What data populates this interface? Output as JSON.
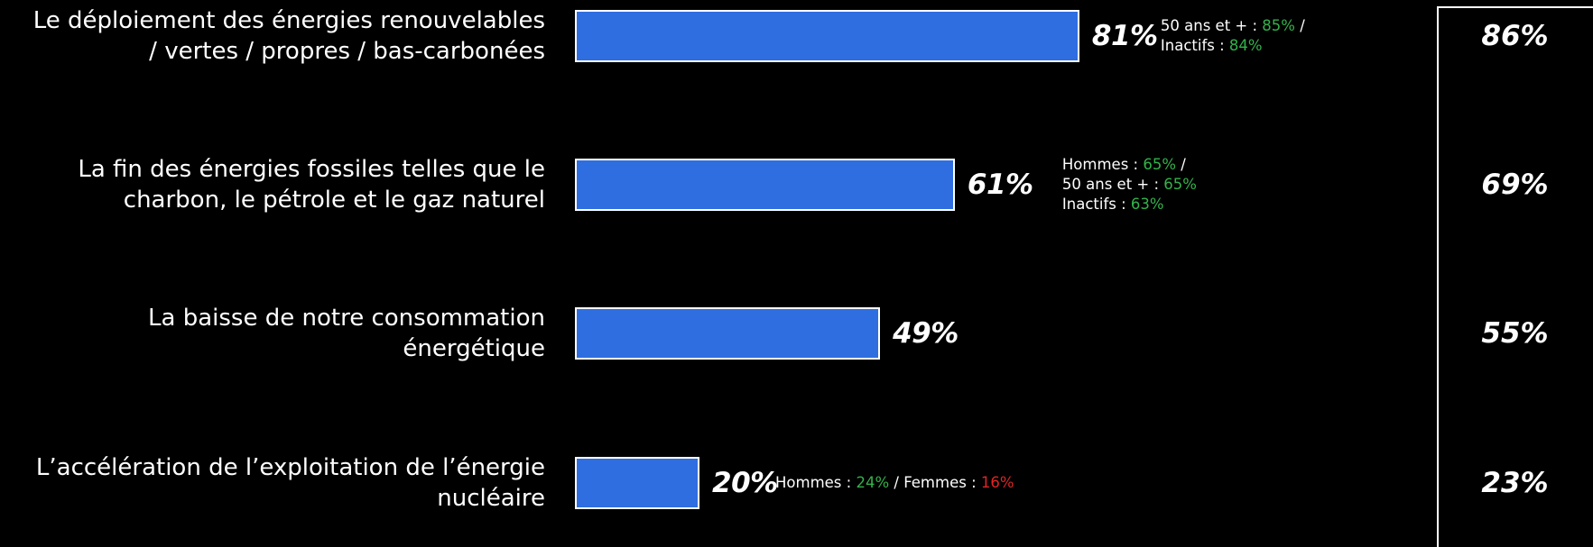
{
  "chart_data": {
    "type": "bar",
    "orientation": "horizontal",
    "categories": [
      "Le déploiement des énergies renouvelables / vertes / propres / bas-carbonées",
      "La fin des énergies fossiles telles que le charbon, le pétrole et le gaz naturel",
      "La baisse de notre consommation énergétique",
      "L’accélération de l’exploitation de l’énergie nucléaire"
    ],
    "category_lines": [
      [
        "Le déploiement des énergies renouvelables",
        "/ vertes / propres / bas-carbonées"
      ],
      [
        "La fin des énergies fossiles telles que le",
        "charbon, le pétrole et le gaz naturel"
      ],
      [
        "La baisse de notre consommation",
        "énergétique"
      ],
      [
        "L’accélération de l’exploitation de l’énergie",
        "nucléaire"
      ]
    ],
    "values": [
      81,
      61,
      49,
      20
    ],
    "value_labels": [
      "81%",
      "61%",
      "49%",
      "20%"
    ],
    "xlim": [
      0,
      100
    ],
    "bar_color": "#2f6ee0",
    "side_values": [
      86,
      69,
      55,
      23
    ],
    "side_value_labels": [
      "86%",
      "69%",
      "55%",
      "23%"
    ],
    "annotations": [
      {
        "layout": "lines",
        "lines": [
          [
            {
              "t": "50 ans et + : ",
              "c": ""
            },
            {
              "t": "85%",
              "c": "g"
            },
            {
              "t": " /",
              "c": ""
            }
          ],
          [
            {
              "t": "Inactifs : ",
              "c": ""
            },
            {
              "t": "84%",
              "c": "g"
            }
          ]
        ]
      },
      {
        "layout": "lines",
        "lines": [
          [
            {
              "t": "Hommes : ",
              "c": ""
            },
            {
              "t": "65%",
              "c": "g"
            },
            {
              "t": " /",
              "c": ""
            }
          ],
          [
            {
              "t": "50 ans et + : ",
              "c": ""
            },
            {
              "t": "65%",
              "c": "g"
            }
          ],
          [
            {
              "t": "Inactifs : ",
              "c": ""
            },
            {
              "t": "63%",
              "c": "g"
            }
          ]
        ]
      },
      null,
      {
        "layout": "lines",
        "lines": [
          [
            {
              "t": "Hommes : ",
              "c": ""
            },
            {
              "t": "24%",
              "c": "g"
            },
            {
              "t": " / Femmes : ",
              "c": ""
            },
            {
              "t": "16%",
              "c": "r"
            }
          ]
        ]
      }
    ],
    "colors": {
      "positive": "#33b24a",
      "negative": "#e02424",
      "background": "#000000",
      "text": "#ffffff"
    }
  }
}
